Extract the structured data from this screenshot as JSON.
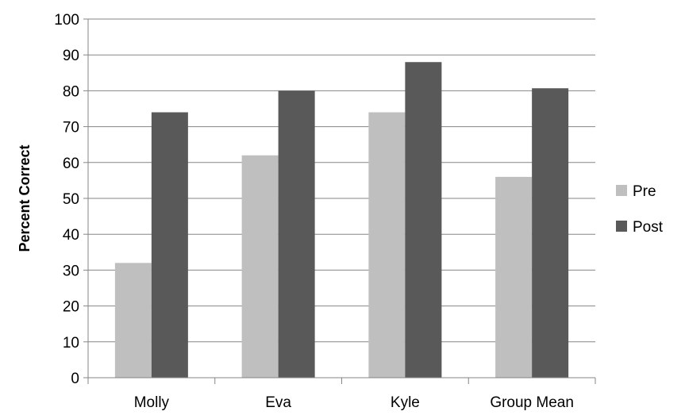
{
  "chart_data": {
    "type": "bar",
    "title": "",
    "xlabel": "",
    "ylabel": "Percent Correct",
    "ylim": [
      0,
      100
    ],
    "yticks": [
      0,
      10,
      20,
      30,
      40,
      50,
      60,
      70,
      80,
      90,
      100
    ],
    "grid": true,
    "legend_position": "right",
    "categories": [
      "Molly",
      "Eva",
      "Kyle",
      "Group Mean"
    ],
    "series": [
      {
        "name": "Pre",
        "color": "#bfbfbf",
        "values": [
          32,
          62,
          74,
          56
        ]
      },
      {
        "name": "Post",
        "color": "#595959",
        "values": [
          74,
          80,
          88,
          80.7
        ]
      }
    ]
  }
}
